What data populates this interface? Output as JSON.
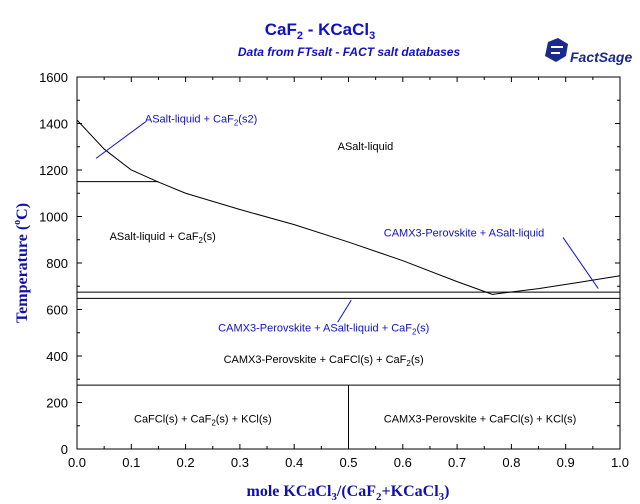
{
  "chart_data": {
    "type": "line",
    "title_main": "CaF",
    "title_sub2": "2",
    "title_rest": " - KCaCl",
    "title_sub3": "3",
    "subtitle": "Data from FTsalt - FACT salt databases",
    "logo": "FactSage",
    "xlabel_prefix": "mole KCaCl",
    "xlabel_s1": "3",
    "xlabel_mid": "/(CaF",
    "xlabel_s2": "2",
    "xlabel_mid2": "+KCaCl",
    "xlabel_s3": "3",
    "xlabel_suffix": ")",
    "ylabel_prefix": "Temperature (",
    "ylabel_deg": "o",
    "ylabel_suffix": "C)",
    "xlim": [
      0,
      1
    ],
    "ylim": [
      0,
      1600
    ],
    "xticks": [
      "0.0",
      "0.1",
      "0.2",
      "0.3",
      "0.4",
      "0.5",
      "0.6",
      "0.7",
      "0.8",
      "0.9",
      "1.0"
    ],
    "yticks": [
      "0",
      "200",
      "400",
      "600",
      "800",
      "1000",
      "1200",
      "1400",
      "1600"
    ],
    "series": [
      {
        "x": [
          0.0,
          0.05,
          0.1,
          0.15,
          0.2,
          0.3,
          0.4,
          0.5,
          0.6,
          0.7,
          0.765
        ],
        "y": [
          1415,
          1290,
          1200,
          1148,
          1100,
          1030,
          965,
          890,
          810,
          720,
          665
        ]
      },
      {
        "x": [
          0.765,
          0.85,
          0.92,
          1.0
        ],
        "y": [
          665,
          690,
          715,
          745
        ]
      }
    ],
    "hlines": [
      {
        "y": 1150,
        "x0": 0.0,
        "x1": 0.15
      },
      {
        "y": 675,
        "x0": 0.0,
        "x1": 1.0
      },
      {
        "y": 648,
        "x0": 0.0,
        "x1": 1.0
      },
      {
        "y": 275,
        "x0": 0.0,
        "x1": 1.0
      }
    ],
    "vlines": [
      {
        "x": 0.5,
        "y0": 0,
        "y1": 275
      }
    ],
    "regions": [
      {
        "id": "r-salt-caf2-s2",
        "parts": [
          "ASalt-liquid + CaF",
          "2",
          "(s2)"
        ],
        "x": 0.125,
        "y": 1405,
        "color": "blue"
      },
      {
        "id": "r-salt-liquid",
        "parts": [
          "ASalt-liquid"
        ],
        "x": 0.48,
        "y": 1285,
        "color": "black"
      },
      {
        "id": "r-salt-caf2-s",
        "parts": [
          "ASalt-liquid + CaF",
          "2",
          "(s)"
        ],
        "x": 0.06,
        "y": 900,
        "color": "black"
      },
      {
        "id": "r-camx3-salt",
        "parts": [
          "CAMX3-Perovskite + ASalt-liquid"
        ],
        "x": 0.565,
        "y": 915,
        "color": "blue"
      },
      {
        "id": "r-camx3-salt-caf2",
        "parts": [
          "CAMX3-Perovskite + ASalt-liquid + CaF",
          "2",
          "(s)"
        ],
        "x": 0.26,
        "y": 505,
        "color": "blue"
      },
      {
        "id": "r-camx3-cafcl-caf2",
        "parts": [
          "CAMX3-Perovskite + CaFCl(s) + CaF",
          "2",
          "(s)"
        ],
        "x": 0.27,
        "y": 370,
        "color": "black"
      },
      {
        "id": "r-cafcl-caf2-kcl",
        "parts": [
          "CaFCl(s) + CaF",
          "2",
          "(s) + KCl(s)"
        ],
        "x": 0.105,
        "y": 115,
        "color": "black"
      },
      {
        "id": "r-camx3-cafcl-kcl",
        "parts": [
          "CAMX3-Perovskite + CaFCl(s) + KCl(s)"
        ],
        "x": 0.565,
        "y": 115,
        "color": "black"
      }
    ],
    "pointers": [
      {
        "from": [
          0.035,
          1250
        ],
        "to": [
          0.125,
          1405
        ]
      },
      {
        "from": [
          0.895,
          910
        ],
        "to": [
          0.96,
          690
        ]
      },
      {
        "from": [
          0.505,
          640
        ],
        "to": [
          0.48,
          545
        ]
      }
    ]
  }
}
